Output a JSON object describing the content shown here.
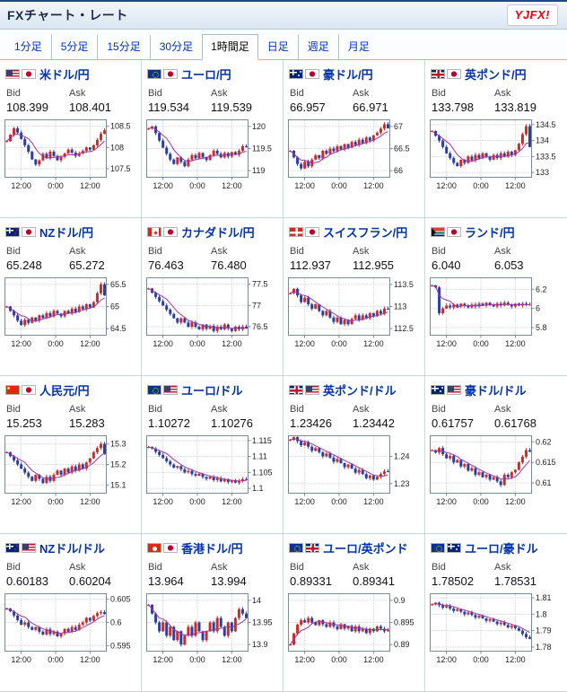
{
  "header": {
    "title": "FXチャート・レート",
    "logo_text": "YJFX!"
  },
  "tabs": {
    "items": [
      {
        "label": "1分足",
        "selected": false
      },
      {
        "label": "5分足",
        "selected": false
      },
      {
        "label": "15分足",
        "selected": false
      },
      {
        "label": "30分足",
        "selected": false
      },
      {
        "label": "1時間足",
        "selected": true
      },
      {
        "label": "日足",
        "selected": false
      },
      {
        "label": "週足",
        "selected": false
      },
      {
        "label": "月足",
        "selected": false
      }
    ]
  },
  "labels": {
    "bid": "Bid",
    "ask": "Ask"
  },
  "chart_meta": {
    "xticks": [
      "12:00",
      "0:00",
      "12:00"
    ],
    "up_color": "#cc2b2b",
    "down_color": "#2b3f9e",
    "ma_color": "#a333a3",
    "grid_color": "#b5bec8",
    "plot_border": "#7a8a99",
    "axis_text_color": "#222222"
  },
  "pairs": [
    {
      "name": "米ドル/円",
      "flags": [
        "us",
        "jp"
      ],
      "bid": "108.399",
      "ask": "108.401",
      "chart_data": {
        "type": "candlestick",
        "yticks": [
          "108.5",
          "108",
          "107.5"
        ],
        "ylim": [
          107.3,
          108.65
        ],
        "xticks": [
          "12:00",
          "0:00",
          "12:00"
        ],
        "closes": [
          108.15,
          108.3,
          108.45,
          108.35,
          108.2,
          108.05,
          107.9,
          107.72,
          107.6,
          107.7,
          107.85,
          107.75,
          107.9,
          107.8,
          107.7,
          107.78,
          107.86,
          107.95,
          107.88,
          107.8,
          107.86,
          107.92,
          108.0,
          107.95,
          108.05,
          108.18,
          108.32,
          108.4
        ]
      }
    },
    {
      "name": "ユーロ/円",
      "flags": [
        "eu",
        "jp"
      ],
      "bid": "119.534",
      "ask": "119.539",
      "chart_data": {
        "type": "candlestick",
        "yticks": [
          "120",
          "119.5",
          "119"
        ],
        "ylim": [
          118.85,
          120.15
        ],
        "xticks": [
          "12:00",
          "0:00",
          "12:00"
        ],
        "closes": [
          119.95,
          120.0,
          119.85,
          119.68,
          119.52,
          119.38,
          119.25,
          119.15,
          119.3,
          119.2,
          119.1,
          119.25,
          119.35,
          119.28,
          119.4,
          119.3,
          119.24,
          119.35,
          119.45,
          119.38,
          119.3,
          119.4,
          119.32,
          119.42,
          119.36,
          119.45,
          119.55,
          119.53
        ]
      }
    },
    {
      "name": "豪ドル/円",
      "flags": [
        "au",
        "jp"
      ],
      "bid": "66.957",
      "ask": "66.971",
      "chart_data": {
        "type": "candlestick",
        "yticks": [
          "67",
          "66.5",
          "66"
        ],
        "ylim": [
          65.85,
          67.15
        ],
        "xticks": [
          "12:00",
          "0:00",
          "12:00"
        ],
        "closes": [
          66.45,
          66.3,
          66.15,
          66.05,
          66.2,
          66.1,
          66.25,
          66.35,
          66.28,
          66.45,
          66.38,
          66.5,
          66.44,
          66.55,
          66.48,
          66.6,
          66.52,
          66.65,
          66.58,
          66.7,
          66.62,
          66.75,
          66.68,
          66.8,
          66.86,
          66.95,
          67.05,
          66.96
        ]
      }
    },
    {
      "name": "英ポンド/円",
      "flags": [
        "gb",
        "jp"
      ],
      "bid": "133.798",
      "ask": "133.819",
      "chart_data": {
        "type": "candlestick",
        "yticks": [
          "134.5",
          "134",
          "133.5",
          "133"
        ],
        "ylim": [
          132.85,
          134.65
        ],
        "xticks": [
          "12:00",
          "0:00",
          "12:00"
        ],
        "closes": [
          134.3,
          134.15,
          134.0,
          133.8,
          133.6,
          133.45,
          133.3,
          133.2,
          133.4,
          133.3,
          133.5,
          133.38,
          133.55,
          133.44,
          133.6,
          133.5,
          133.4,
          133.55,
          133.45,
          133.6,
          133.5,
          133.65,
          133.55,
          133.7,
          133.9,
          134.2,
          134.45,
          133.8
        ]
      }
    },
    {
      "name": "NZドル/円",
      "flags": [
        "nz",
        "jp"
      ],
      "bid": "65.248",
      "ask": "65.272",
      "chart_data": {
        "type": "candlestick",
        "yticks": [
          "65.5",
          "65",
          "64.5"
        ],
        "ylim": [
          64.35,
          65.65
        ],
        "xticks": [
          "12:00",
          "0:00",
          "12:00"
        ],
        "closes": [
          65.0,
          64.9,
          64.8,
          64.68,
          64.58,
          64.7,
          64.63,
          64.75,
          64.68,
          64.8,
          64.74,
          64.85,
          64.78,
          64.9,
          64.84,
          64.78,
          64.9,
          64.84,
          64.95,
          64.88,
          65.0,
          64.94,
          65.05,
          64.98,
          65.1,
          65.3,
          65.5,
          65.25
        ]
      }
    },
    {
      "name": "カナダドル/円",
      "flags": [
        "ca",
        "jp"
      ],
      "bid": "76.463",
      "ask": "76.480",
      "chart_data": {
        "type": "candlestick",
        "yticks": [
          "77.5",
          "77",
          "76.5"
        ],
        "ylim": [
          76.3,
          77.65
        ],
        "xticks": [
          "12:00",
          "0:00",
          "12:00"
        ],
        "closes": [
          77.4,
          77.3,
          77.2,
          77.1,
          77.0,
          76.9,
          76.8,
          76.7,
          76.6,
          76.7,
          76.6,
          76.5,
          76.6,
          76.5,
          76.44,
          76.55,
          76.45,
          76.52,
          76.4,
          76.5,
          76.44,
          76.55,
          76.46,
          76.4,
          76.5,
          76.44,
          76.5,
          76.46
        ]
      }
    },
    {
      "name": "スイスフラン/円",
      "flags": [
        "ch",
        "jp"
      ],
      "bid": "112.937",
      "ask": "112.955",
      "chart_data": {
        "type": "candlestick",
        "yticks": [
          "113.5",
          "113",
          "112.5"
        ],
        "ylim": [
          112.35,
          113.65
        ],
        "xticks": [
          "12:00",
          "0:00",
          "12:00"
        ],
        "closes": [
          113.3,
          113.4,
          113.25,
          113.1,
          113.2,
          113.05,
          112.95,
          113.05,
          112.9,
          112.8,
          112.9,
          112.75,
          112.65,
          112.75,
          112.6,
          112.7,
          112.6,
          112.72,
          112.8,
          112.7,
          112.8,
          112.74,
          112.85,
          112.78,
          112.9,
          112.84,
          112.95,
          112.94
        ]
      }
    },
    {
      "name": "ランド/円",
      "flags": [
        "za",
        "jp"
      ],
      "bid": "6.040",
      "ask": "6.053",
      "chart_data": {
        "type": "candlestick",
        "yticks": [
          "6.2",
          "6",
          "5.8"
        ],
        "ylim": [
          5.72,
          6.32
        ],
        "xticks": [
          "12:00",
          "0:00",
          "12:00"
        ],
        "closes": [
          6.24,
          6.22,
          5.95,
          6.0,
          6.03,
          6.01,
          6.04,
          6.02,
          6.05,
          6.03,
          6.01,
          6.04,
          6.02,
          6.05,
          6.03,
          6.06,
          6.04,
          6.02,
          6.05,
          6.03,
          6.06,
          6.04,
          6.02,
          6.05,
          6.03,
          6.05,
          6.04,
          6.04
        ]
      }
    },
    {
      "name": "人民元/円",
      "flags": [
        "cn",
        "jp"
      ],
      "bid": "15.253",
      "ask": "15.283",
      "chart_data": {
        "type": "candlestick",
        "yticks": [
          "15.3",
          "15.2",
          "15.1"
        ],
        "ylim": [
          15.06,
          15.34
        ],
        "xticks": [
          "12:00",
          "0:00",
          "12:00"
        ],
        "closes": [
          15.26,
          15.24,
          15.22,
          15.2,
          15.18,
          15.16,
          15.14,
          15.12,
          15.15,
          15.13,
          15.11,
          15.14,
          15.12,
          15.15,
          15.17,
          15.15,
          15.18,
          15.16,
          15.19,
          15.17,
          15.2,
          15.18,
          15.21,
          15.23,
          15.26,
          15.28,
          15.3,
          15.25
        ]
      }
    },
    {
      "name": "ユーロ/ドル",
      "flags": [
        "eu",
        "us"
      ],
      "bid": "1.10272",
      "ask": "1.10276",
      "chart_data": {
        "type": "candlestick",
        "yticks": [
          "1.115",
          "1.11",
          "1.105",
          "1.1"
        ],
        "ylim": [
          1.0985,
          1.1165
        ],
        "xticks": [
          "12:00",
          "0:00",
          "12:00"
        ],
        "closes": [
          1.113,
          1.1125,
          1.1115,
          1.1105,
          1.1095,
          1.1085,
          1.1075,
          1.1065,
          1.107,
          1.106,
          1.105,
          1.1055,
          1.1045,
          1.104,
          1.1046,
          1.1036,
          1.103,
          1.1036,
          1.1026,
          1.1032,
          1.1022,
          1.1028,
          1.102,
          1.1026,
          1.1018,
          1.1024,
          1.1029,
          1.1027
        ]
      }
    },
    {
      "name": "英ポンド/ドル",
      "flags": [
        "gb",
        "us"
      ],
      "bid": "1.23426",
      "ask": "1.23442",
      "chart_data": {
        "type": "candlestick",
        "yticks": [
          "1.24",
          "1.23"
        ],
        "ylim": [
          1.2265,
          1.2475
        ],
        "xticks": [
          "12:00",
          "0:00",
          "12:00"
        ],
        "closes": [
          1.246,
          1.247,
          1.2455,
          1.244,
          1.245,
          1.2435,
          1.242,
          1.243,
          1.2415,
          1.24,
          1.241,
          1.2395,
          1.238,
          1.239,
          1.2375,
          1.236,
          1.237,
          1.2355,
          1.234,
          1.235,
          1.2335,
          1.232,
          1.233,
          1.2315,
          1.2325,
          1.2335,
          1.2345,
          1.2343
        ]
      }
    },
    {
      "name": "豪ドル/ドル",
      "flags": [
        "au",
        "us"
      ],
      "bid": "0.61757",
      "ask": "0.61768",
      "chart_data": {
        "type": "candlestick",
        "yticks": [
          "0.62",
          "0.615",
          "0.61"
        ],
        "ylim": [
          0.6075,
          0.6215
        ],
        "xticks": [
          "12:00",
          "0:00",
          "12:00"
        ],
        "closes": [
          0.618,
          0.6174,
          0.6185,
          0.617,
          0.616,
          0.6166,
          0.615,
          0.6156,
          0.614,
          0.6146,
          0.613,
          0.6136,
          0.612,
          0.6126,
          0.6114,
          0.612,
          0.6108,
          0.6114,
          0.6104,
          0.6095,
          0.612,
          0.6114,
          0.6126,
          0.6132,
          0.615,
          0.6164,
          0.618,
          0.6176
        ]
      }
    },
    {
      "name": "NZドル/ドル",
      "flags": [
        "nz",
        "us"
      ],
      "bid": "0.60183",
      "ask": "0.60204",
      "chart_data": {
        "type": "candlestick",
        "yticks": [
          "0.605",
          "0.6",
          "0.595"
        ],
        "ylim": [
          0.5938,
          0.6062
        ],
        "xticks": [
          "12:00",
          "0:00",
          "12:00"
        ],
        "closes": [
          0.603,
          0.6024,
          0.6015,
          0.6005,
          0.5995,
          0.6,
          0.599,
          0.5984,
          0.599,
          0.598,
          0.5974,
          0.5985,
          0.5975,
          0.598,
          0.597,
          0.5976,
          0.5986,
          0.598,
          0.599,
          0.5984,
          0.5995,
          0.6,
          0.601,
          0.6004,
          0.6014,
          0.602,
          0.6022,
          0.6018
        ]
      }
    },
    {
      "name": "香港ドル/円",
      "flags": [
        "hk",
        "jp"
      ],
      "bid": "13.964",
      "ask": "13.994",
      "chart_data": {
        "type": "candlestick",
        "yticks": [
          "14",
          "13.95",
          "13.9"
        ],
        "ylim": [
          13.885,
          14.015
        ],
        "xticks": [
          "12:00",
          "0:00",
          "12:00"
        ],
        "closes": [
          13.99,
          13.97,
          13.95,
          13.93,
          13.95,
          13.92,
          13.94,
          13.91,
          13.93,
          13.9,
          13.92,
          13.94,
          13.92,
          13.95,
          13.93,
          13.91,
          13.93,
          13.95,
          13.93,
          13.96,
          13.94,
          13.92,
          13.95,
          13.93,
          13.96,
          13.98,
          13.97,
          13.96
        ]
      }
    },
    {
      "name": "ユーロ/英ポンド",
      "flags": [
        "eu",
        "gb"
      ],
      "bid": "0.89331",
      "ask": "0.89341",
      "chart_data": {
        "type": "candlestick",
        "yticks": [
          "0.9",
          "0.895",
          "0.89"
        ],
        "ylim": [
          0.8885,
          0.9015
        ],
        "xticks": [
          "12:00",
          "0:00",
          "12:00"
        ],
        "closes": [
          0.89,
          0.8925,
          0.8945,
          0.8955,
          0.895,
          0.896,
          0.895,
          0.8944,
          0.8955,
          0.8946,
          0.894,
          0.895,
          0.8941,
          0.8935,
          0.8946,
          0.8936,
          0.8942,
          0.893,
          0.8941,
          0.893,
          0.8936,
          0.8926,
          0.8936,
          0.893,
          0.8941,
          0.8936,
          0.893,
          0.8933
        ]
      }
    },
    {
      "name": "ユーロ/豪ドル",
      "flags": [
        "eu",
        "au"
      ],
      "bid": "1.78502",
      "ask": "1.78531",
      "chart_data": {
        "type": "candlestick",
        "yticks": [
          "1.81",
          "1.8",
          "1.79",
          "1.78"
        ],
        "ylim": [
          1.7775,
          1.8125
        ],
        "xticks": [
          "12:00",
          "0:00",
          "12:00"
        ],
        "closes": [
          1.806,
          1.807,
          1.8055,
          1.804,
          1.805,
          1.8035,
          1.802,
          1.803,
          1.8015,
          1.8,
          1.801,
          1.7995,
          1.798,
          1.799,
          1.7975,
          1.796,
          1.797,
          1.7955,
          1.794,
          1.795,
          1.7935,
          1.792,
          1.793,
          1.7915,
          1.79,
          1.788,
          1.786,
          1.785
        ]
      }
    }
  ]
}
